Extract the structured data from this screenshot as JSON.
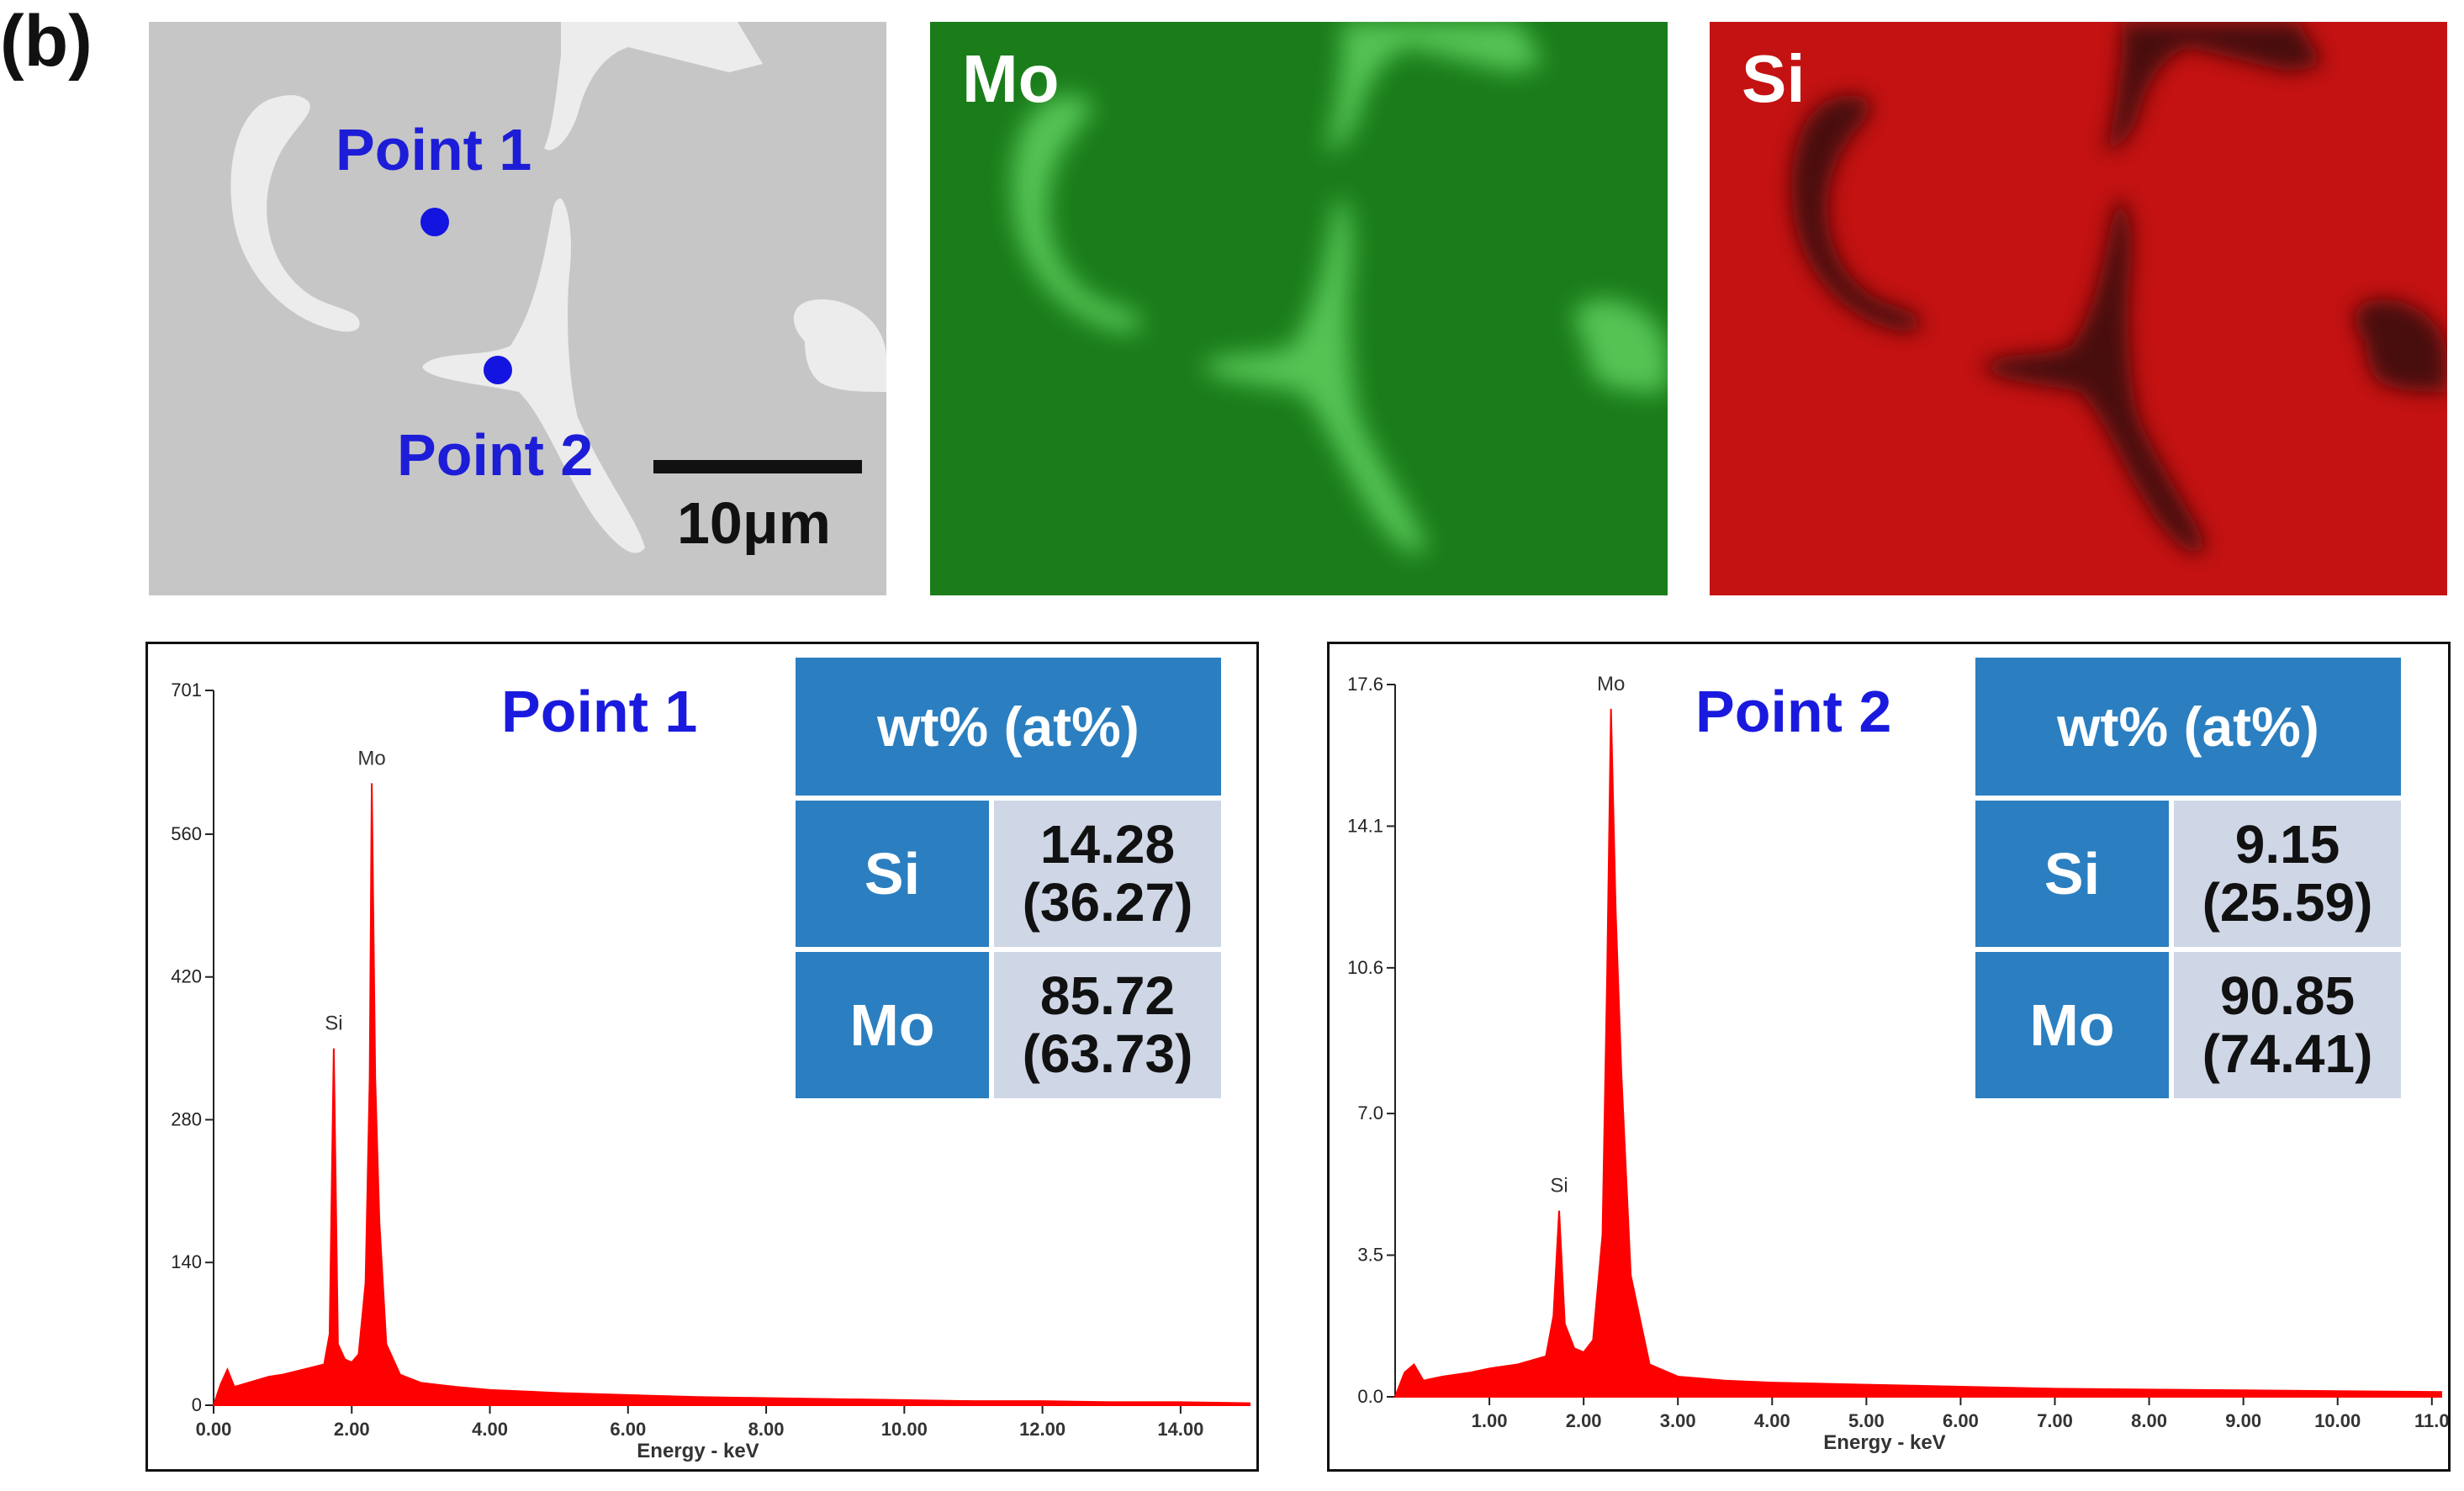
{
  "figure_label": "(b)",
  "sem_image": {
    "point1_label": "Point 1",
    "point2_label": "Point 2",
    "scale_bar_label": "10μm"
  },
  "eds_maps": {
    "mo_label": "Mo",
    "si_label": "Si",
    "mo_color": "#1f8f1f",
    "si_color": "#c21212"
  },
  "spectra": [
    {
      "title": "Point 1",
      "table": {
        "header": "wt% (at%)",
        "rows": [
          {
            "element": "Si",
            "wt": "14.28",
            "at": "(36.27)"
          },
          {
            "element": "Mo",
            "wt": "85.72",
            "at": "(63.73)"
          }
        ]
      }
    },
    {
      "title": "Point 2",
      "table": {
        "header": "wt% (at%)",
        "rows": [
          {
            "element": "Si",
            "wt": "9.15",
            "at": "(25.59)"
          },
          {
            "element": "Mo",
            "wt": "90.85",
            "at": "(74.41)"
          }
        ]
      }
    }
  ],
  "chart_data": [
    {
      "type": "line",
      "title": "Point 1",
      "xlabel": "Energy - keV",
      "ylabel": "",
      "xlim": [
        0,
        15
      ],
      "ylim": [
        0,
        701
      ],
      "x_ticks": [
        "0.00",
        "2.00",
        "4.00",
        "6.00",
        "8.00",
        "10.00",
        "12.00",
        "14.00"
      ],
      "x_tick_values": [
        0,
        2,
        4,
        6,
        8,
        10,
        12,
        14
      ],
      "y_ticks": [
        "0",
        "140",
        "280",
        "420",
        "560",
        "701"
      ],
      "y_tick_values": [
        0,
        140,
        280,
        420,
        560,
        701
      ],
      "color": "#ff0000",
      "peaks": [
        {
          "label": "Si",
          "x": 1.74,
          "y": 350
        },
        {
          "label": "Mo",
          "x": 2.29,
          "y": 610
        }
      ],
      "series": [
        {
          "values": [
            [
              0.0,
              0
            ],
            [
              0.1,
              20
            ],
            [
              0.2,
              35
            ],
            [
              0.3,
              18
            ],
            [
              0.5,
              22
            ],
            [
              0.8,
              28
            ],
            [
              1.0,
              30
            ],
            [
              1.3,
              35
            ],
            [
              1.6,
              40
            ],
            [
              1.68,
              70
            ],
            [
              1.74,
              350
            ],
            [
              1.8,
              60
            ],
            [
              1.9,
              45
            ],
            [
              2.0,
              42
            ],
            [
              2.1,
              50
            ],
            [
              2.2,
              120
            ],
            [
              2.26,
              320
            ],
            [
              2.29,
              610
            ],
            [
              2.34,
              320
            ],
            [
              2.4,
              180
            ],
            [
              2.5,
              60
            ],
            [
              2.7,
              30
            ],
            [
              3.0,
              22
            ],
            [
              3.5,
              18
            ],
            [
              4.0,
              15
            ],
            [
              5.0,
              12
            ],
            [
              6.0,
              10
            ],
            [
              7.0,
              8
            ],
            [
              8.0,
              7
            ],
            [
              9.0,
              6
            ],
            [
              10.0,
              5
            ],
            [
              11.0,
              4
            ],
            [
              12.0,
              4
            ],
            [
              13.0,
              3
            ],
            [
              14.0,
              3
            ],
            [
              15.0,
              2
            ]
          ]
        }
      ]
    },
    {
      "type": "line",
      "title": "Point 2",
      "xlabel": "Energy - keV",
      "ylabel": "",
      "xlim": [
        0,
        11.1
      ],
      "ylim": [
        0,
        17.6
      ],
      "x_ticks": [
        "1.00",
        "2.00",
        "3.00",
        "4.00",
        "5.00",
        "6.00",
        "7.00",
        "8.00",
        "9.00",
        "10.00",
        "11.0"
      ],
      "x_tick_values": [
        1,
        2,
        3,
        4,
        5,
        6,
        7,
        8,
        9,
        10,
        11
      ],
      "y_ticks": [
        "0.0",
        "3.5",
        "7.0",
        "10.6",
        "14.1",
        "17.6"
      ],
      "y_tick_values": [
        0,
        3.5,
        7.0,
        10.6,
        14.1,
        17.6
      ],
      "color": "#ff0000",
      "peaks": [
        {
          "label": "Si",
          "x": 1.74,
          "y": 4.6
        },
        {
          "label": "Mo",
          "x": 2.29,
          "y": 17.0
        }
      ],
      "series": [
        {
          "values": [
            [
              0.0,
              0
            ],
            [
              0.1,
              0.6
            ],
            [
              0.2,
              0.8
            ],
            [
              0.3,
              0.4
            ],
            [
              0.5,
              0.5
            ],
            [
              0.8,
              0.6
            ],
            [
              1.0,
              0.7
            ],
            [
              1.3,
              0.8
            ],
            [
              1.6,
              1.0
            ],
            [
              1.68,
              2.0
            ],
            [
              1.74,
              4.6
            ],
            [
              1.8,
              1.8
            ],
            [
              1.9,
              1.2
            ],
            [
              2.0,
              1.1
            ],
            [
              2.1,
              1.4
            ],
            [
              2.2,
              4.0
            ],
            [
              2.25,
              10.5
            ],
            [
              2.29,
              17.0
            ],
            [
              2.34,
              12.0
            ],
            [
              2.4,
              8.0
            ],
            [
              2.5,
              3.0
            ],
            [
              2.7,
              0.8
            ],
            [
              3.0,
              0.5
            ],
            [
              3.5,
              0.4
            ],
            [
              4.0,
              0.35
            ],
            [
              5.0,
              0.3
            ],
            [
              6.0,
              0.25
            ],
            [
              7.0,
              0.2
            ],
            [
              8.0,
              0.18
            ],
            [
              9.0,
              0.16
            ],
            [
              10.0,
              0.14
            ],
            [
              11.1,
              0.12
            ]
          ]
        }
      ]
    }
  ]
}
